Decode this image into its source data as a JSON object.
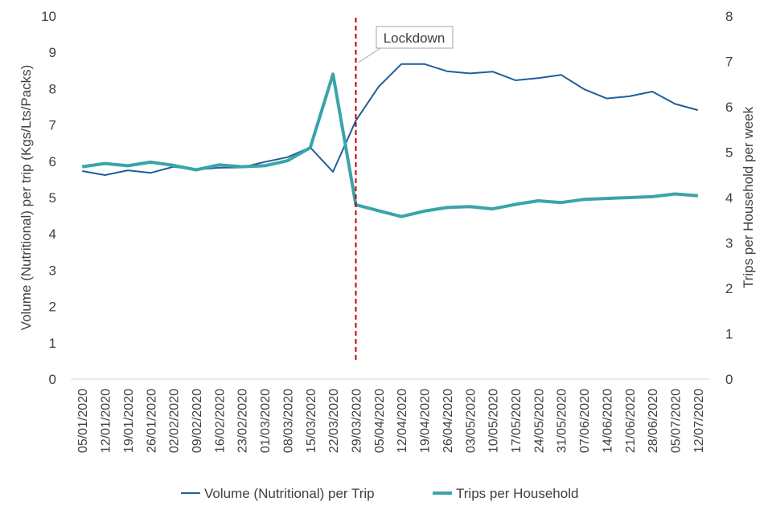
{
  "chart_data": {
    "type": "line",
    "x": [
      "05/01/2020",
      "12/01/2020",
      "19/01/2020",
      "26/01/2020",
      "02/02/2020",
      "09/02/2020",
      "16/02/2020",
      "23/02/2020",
      "01/03/2020",
      "08/03/2020",
      "15/03/2020",
      "22/03/2020",
      "29/03/2020",
      "05/04/2020",
      "12/04/2020",
      "19/04/2020",
      "26/04/2020",
      "03/05/2020",
      "10/05/2020",
      "17/05/2020",
      "24/05/2020",
      "31/05/2020",
      "07/06/2020",
      "14/06/2020",
      "21/06/2020",
      "28/06/2020",
      "05/07/2020",
      "12/07/2020"
    ],
    "series": [
      {
        "name": "Volume (Nutritional) per Trip",
        "axis": "left",
        "color": "#1f5f99",
        "values": [
          5.73,
          5.62,
          5.75,
          5.68,
          5.85,
          5.77,
          5.82,
          5.83,
          5.98,
          6.11,
          6.38,
          5.71,
          7.12,
          8.05,
          8.68,
          8.68,
          8.48,
          8.42,
          8.47,
          8.23,
          8.29,
          8.38,
          7.99,
          7.73,
          7.79,
          7.92,
          7.58,
          7.41
        ]
      },
      {
        "name": "Trips per Household",
        "axis": "right",
        "color": "#3aa4aa",
        "values": [
          4.68,
          4.75,
          4.7,
          4.78,
          4.71,
          4.61,
          4.72,
          4.68,
          4.7,
          4.81,
          5.1,
          6.72,
          3.84,
          3.71,
          3.58,
          3.7,
          3.78,
          3.8,
          3.75,
          3.85,
          3.93,
          3.89,
          3.96,
          3.98,
          4.0,
          4.02,
          4.08,
          4.04
        ]
      }
    ],
    "ylabel_left": "Volume (Nutritional) per trip (Kgs/Lts/Packs)",
    "ylabel_right": "Trips per Household  per week",
    "ylim_left": [
      0,
      10
    ],
    "ylim_right": [
      0,
      8
    ],
    "yticks_left": [
      0,
      1,
      2,
      3,
      4,
      5,
      6,
      7,
      8,
      9,
      10
    ],
    "yticks_right": [
      0,
      1,
      2,
      3,
      4,
      5,
      6,
      7,
      8
    ],
    "grid": false,
    "legend_position": "bottom",
    "annotation": {
      "text": "Lockdown",
      "at_x": "29/03/2020",
      "line_color": "#c00000",
      "line_style": "dashed"
    }
  }
}
